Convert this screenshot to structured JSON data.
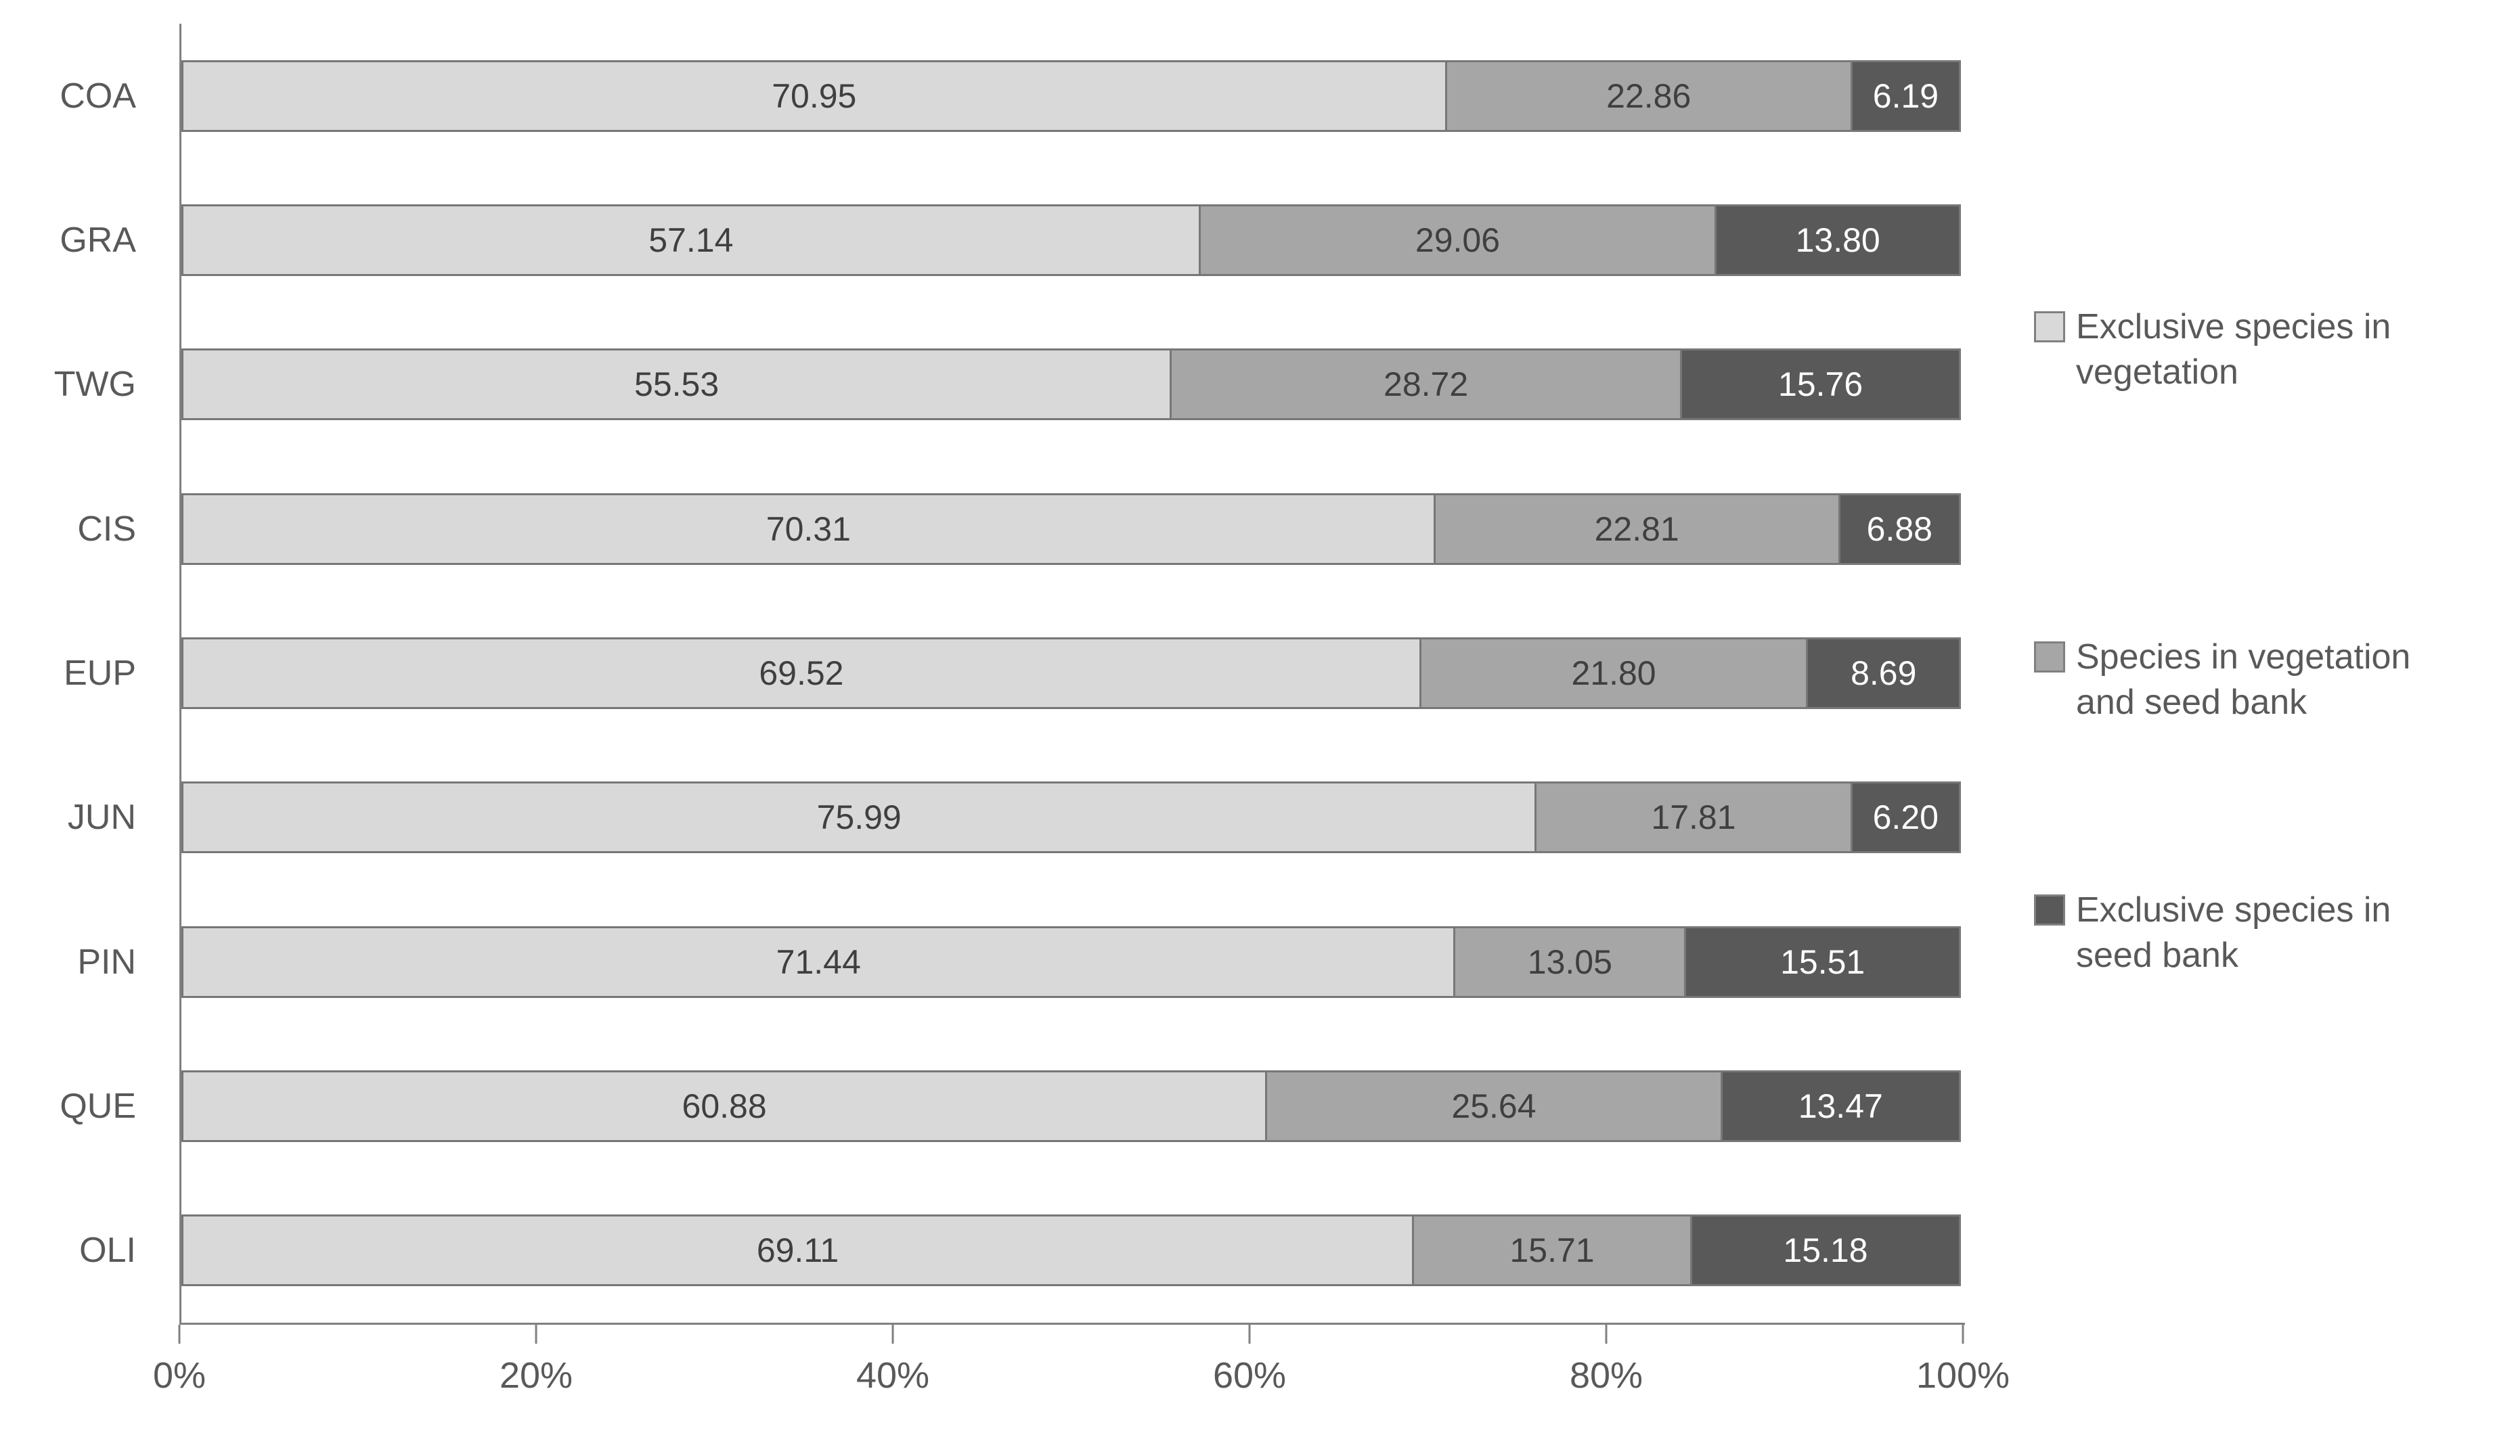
{
  "chart_data": {
    "type": "bar",
    "variant": "horizontal-stacked",
    "title": "",
    "categories": [
      "COA",
      "GRA",
      "TWG",
      "CIS",
      "EUP",
      "JUN",
      "PIN",
      "QUE",
      "OLI"
    ],
    "series": [
      {
        "name": "Exclusive species in vegetation",
        "color": "#d9d9d9",
        "label_color": "#3f3f3f",
        "values": [
          70.95,
          57.14,
          55.53,
          70.31,
          69.52,
          75.99,
          71.44,
          60.88,
          69.11
        ],
        "labels": [
          "70.95",
          "57.14",
          "55.53",
          "70.31",
          "69.52",
          "75.99",
          "71.44",
          "60.88",
          "69.11"
        ]
      },
      {
        "name": "Species in vegetation and seed bank",
        "color": "#a6a6a6",
        "label_color": "#3f3f3f",
        "values": [
          22.86,
          29.06,
          28.72,
          22.81,
          21.8,
          17.81,
          13.05,
          25.64,
          15.71
        ],
        "labels": [
          "22.86",
          "29.06",
          "28.72",
          "22.81",
          "21.80",
          "17.81",
          "13.05",
          "25.64",
          "15.71"
        ]
      },
      {
        "name": "Exclusive species in seed bank",
        "color": "#595959",
        "label_color": "#ffffff",
        "values": [
          6.19,
          13.8,
          15.76,
          6.88,
          8.69,
          6.2,
          15.51,
          13.47,
          15.18
        ],
        "labels": [
          "6.19",
          "13.80",
          "15.76",
          "6.88",
          "8.69",
          "6.20",
          "15.51",
          "13.47",
          "15.18"
        ]
      }
    ],
    "x_ticks": [
      "0%",
      "20%",
      "40%",
      "60%",
      "80%",
      "100%"
    ],
    "xlim": [
      0,
      100
    ],
    "grid": false,
    "legend_position": "right",
    "axis_color": "#808080",
    "bar_border_color": "#777777"
  }
}
